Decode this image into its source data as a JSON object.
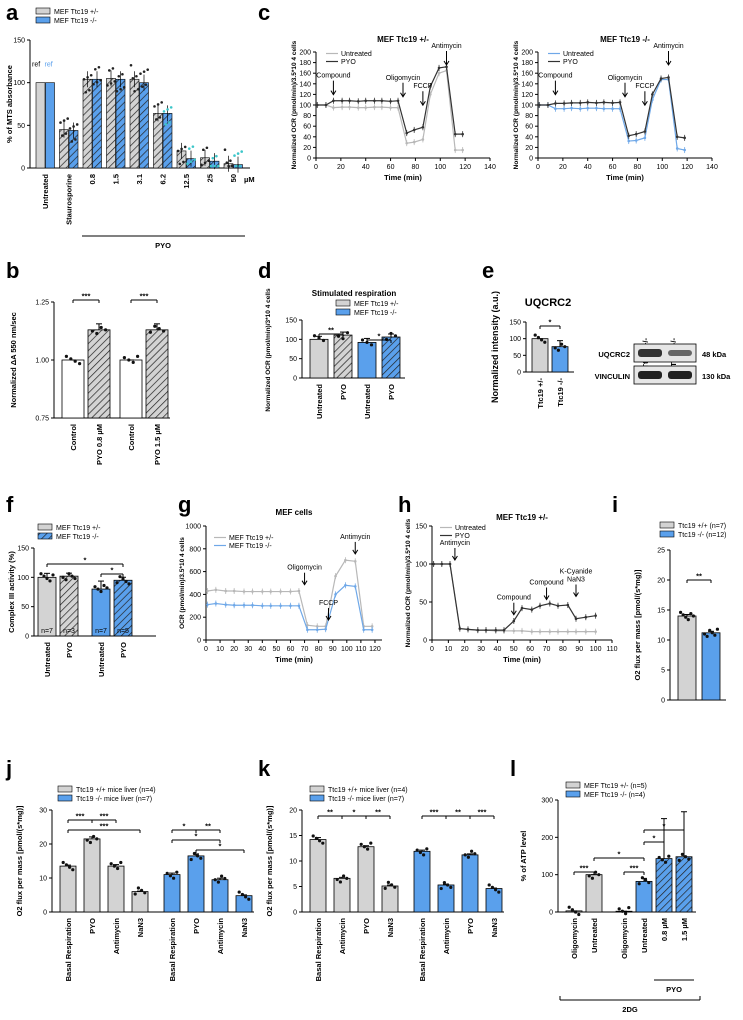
{
  "colors": {
    "grey": "#d3d3d3",
    "blue": "#5aa0ec",
    "dark": "#333333",
    "cyan": "#3cc6c9",
    "lightgrey": "#b8b8b8",
    "lightblue": "#6fa8e8"
  },
  "chart_data": [
    {
      "panel": "a",
      "type": "bar",
      "ylabel": "% of MTS absorbance",
      "ylim": [
        0,
        150
      ],
      "yticks": [
        0,
        50,
        100,
        150
      ],
      "legend": [
        "MEF Ttc19 +/-",
        "MEF Ttc19 -/-"
      ],
      "categories": [
        "Untreated",
        "Staurosporine",
        "0.8",
        "1.5",
        "3.1",
        "6.2",
        "12.5",
        "25",
        "50"
      ],
      "bracket_label": "PYO",
      "unit_label": "µM",
      "ref_labels": [
        "ref",
        "ref"
      ],
      "series": [
        {
          "name": "MEF Ttc19 +/-",
          "values": [
            100,
            45,
            104,
            105,
            104,
            64,
            20,
            12,
            5
          ]
        },
        {
          "name": "MEF Ttc19 -/-",
          "values": [
            100,
            44,
            104,
            104,
            100,
            64,
            11,
            8,
            4
          ]
        }
      ]
    },
    {
      "panel": "b",
      "type": "bar",
      "ylabel": "Normalized ΔA 550 nm/sec",
      "ylim": [
        0.75,
        1.25
      ],
      "yticks": [
        "0.75",
        "1.00",
        "1.25"
      ],
      "categories": [
        "Control",
        "PYO 0.8 µM",
        "Control",
        "PYO 1.5 µM"
      ],
      "values": [
        1.0,
        1.13,
        1.0,
        1.13
      ],
      "significance": [
        "***",
        "***"
      ]
    },
    {
      "panel": "c1",
      "type": "line",
      "title": "MEF Ttc19 +/-",
      "xlabel": "Time (min)",
      "ylabel": "Normalized OCR (pmol/min)/3.5*10 4 cells",
      "xlim": [
        0,
        140
      ],
      "ylim": [
        0,
        200
      ],
      "xticks": [
        0,
        20,
        40,
        60,
        80,
        100,
        120,
        140
      ],
      "yticks": [
        0,
        20,
        40,
        60,
        80,
        100,
        120,
        140,
        160,
        180,
        200
      ],
      "annotations": [
        "Compound",
        "Oligomycin",
        "FCCP",
        "Antimycin"
      ],
      "x": [
        1,
        8,
        14,
        21,
        27,
        34,
        40,
        47,
        53,
        60,
        66,
        73,
        79,
        86,
        92,
        99,
        105,
        112,
        118
      ],
      "series": [
        {
          "name": "Untreated",
          "values": [
            100,
            100,
            95,
            96,
            96,
            95,
            95,
            96,
            96,
            95,
            95,
            28,
            30,
            35,
            120,
            160,
            165,
            15,
            15
          ]
        },
        {
          "name": "PYO",
          "values": [
            100,
            100,
            108,
            108,
            108,
            107,
            108,
            108,
            108,
            107,
            108,
            47,
            53,
            58,
            135,
            170,
            172,
            45,
            45
          ]
        }
      ]
    },
    {
      "panel": "c2",
      "type": "line",
      "title": "MEF Ttc19 -/-",
      "xlabel": "Time (min)",
      "ylabel": "Normalized OCR (pmol/min)/3.5*10 4 cells",
      "xlim": [
        0,
        140
      ],
      "ylim": [
        0,
        200
      ],
      "xticks": [
        0,
        20,
        40,
        60,
        80,
        100,
        120,
        140
      ],
      "yticks": [
        0,
        20,
        40,
        60,
        80,
        100,
        120,
        140,
        160,
        180,
        200
      ],
      "annotations": [
        "Compound",
        "Oligomycin",
        "FCCP",
        "Antimycin"
      ],
      "x": [
        1,
        8,
        14,
        21,
        27,
        34,
        40,
        47,
        53,
        60,
        66,
        73,
        79,
        86,
        92,
        99,
        105,
        112,
        118
      ],
      "series": [
        {
          "name": "Untreated",
          "values": [
            100,
            100,
            93,
            93,
            94,
            93,
            94,
            94,
            93,
            93,
            93,
            32,
            33,
            38,
            110,
            148,
            148,
            18,
            15
          ]
        },
        {
          "name": "PYO",
          "values": [
            100,
            100,
            103,
            103,
            104,
            104,
            105,
            104,
            105,
            104,
            105,
            42,
            45,
            50,
            120,
            150,
            152,
            40,
            38
          ]
        }
      ]
    },
    {
      "panel": "d",
      "type": "bar",
      "title": "Stimulated respiration",
      "ylabel": "Normalized OCR (pmol/min)/3*10 4 cells",
      "ylim": [
        0,
        150
      ],
      "yticks": [
        0,
        50,
        100,
        150
      ],
      "legend": [
        "MEF Ttc19 +/-",
        "MEF Ttc19 -/-"
      ],
      "categories": [
        "Untreated",
        "PYO",
        "Untreated",
        "PYO"
      ],
      "values": [
        100,
        111,
        92,
        106
      ],
      "significance": [
        "**",
        "*"
      ]
    },
    {
      "panel": "e",
      "type": "bar",
      "title": "UQCRC2",
      "ylabel": "Normalized intensity (a.u.)",
      "ylim": [
        0,
        150
      ],
      "yticks": [
        0,
        50,
        100,
        150
      ],
      "categories": [
        "Ttc19 +/-",
        "Ttc19 -/-"
      ],
      "values": [
        100,
        76
      ],
      "significance": [
        "*"
      ],
      "blot": {
        "lanes": [
          "Ttc19 +/-",
          "Ttc19 -/-"
        ],
        "rows": [
          "UQCRC2",
          "VINCULIN"
        ],
        "sizes": [
          "48 kDa",
          "130 kDa"
        ]
      }
    },
    {
      "panel": "f",
      "type": "bar",
      "ylabel": "Complex III activity (%)",
      "ylim": [
        0,
        150
      ],
      "yticks": [
        0,
        50,
        100,
        150
      ],
      "legend": [
        "MEF Ttc19 +/-",
        "MEF Ttc19 -/-"
      ],
      "categories": [
        "Untreated",
        "PYO",
        "Untreated",
        "PYO"
      ],
      "values": [
        100,
        102,
        80,
        95
      ],
      "n_labels": [
        "n=7",
        "n=3",
        "n=7",
        "n=5"
      ],
      "significance": [
        "*",
        "*"
      ]
    },
    {
      "panel": "g",
      "type": "line",
      "title": "MEF cells",
      "xlabel": "Time (min)",
      "ylabel": "OCR (pmol/min)/3.5*10 4 cells",
      "xlim": [
        0,
        125
      ],
      "ylim": [
        0,
        1000
      ],
      "xticks": [
        0,
        10,
        20,
        30,
        40,
        50,
        60,
        70,
        80,
        90,
        100,
        110,
        120
      ],
      "yticks": [
        0,
        200,
        400,
        600,
        800,
        1000
      ],
      "annotations": [
        "Oligomycin",
        "FCCP",
        "Antimycin"
      ],
      "x": [
        1,
        7,
        14,
        20,
        27,
        33,
        40,
        46,
        53,
        60,
        66,
        72,
        79,
        85,
        92,
        99,
        106,
        112,
        118
      ],
      "series": [
        {
          "name": "MEF Ttc19 +/-",
          "values": [
            430,
            440,
            430,
            430,
            425,
            425,
            425,
            425,
            425,
            425,
            430,
            130,
            120,
            120,
            560,
            700,
            690,
            120,
            120
          ]
        },
        {
          "name": "MEF Ttc19 -/-",
          "values": [
            310,
            320,
            310,
            305,
            305,
            305,
            300,
            300,
            300,
            300,
            300,
            90,
            90,
            95,
            400,
            480,
            470,
            90,
            90
          ]
        }
      ]
    },
    {
      "panel": "h",
      "type": "line",
      "title": "MEF Ttc19 +/-",
      "xlabel": "Time (min)",
      "ylabel": "Normalized OCR (pmol/min)/3.5*10 4 cells",
      "xlim": [
        0,
        110
      ],
      "ylim": [
        0,
        150
      ],
      "xticks": [
        0,
        10,
        20,
        30,
        40,
        50,
        60,
        70,
        80,
        90,
        100,
        110
      ],
      "yticks": [
        0,
        50,
        100,
        150
      ],
      "annotations": [
        "Antimycin",
        "Compound",
        "Compound",
        "K-Cyanide NaN3"
      ],
      "x": [
        1,
        6,
        11,
        17,
        22,
        28,
        33,
        39,
        44,
        50,
        55,
        61,
        66,
        72,
        77,
        83,
        88,
        94,
        100
      ],
      "series": [
        {
          "name": "Untreated",
          "values": [
            100,
            100,
            100,
            15,
            14,
            13,
            13,
            12,
            12,
            12,
            12,
            11,
            11,
            11,
            11,
            11,
            11,
            11,
            11
          ]
        },
        {
          "name": "PYO",
          "values": [
            100,
            100,
            100,
            15,
            14,
            13,
            13,
            13,
            13,
            25,
            42,
            40,
            45,
            48,
            45,
            46,
            28,
            30,
            32
          ]
        }
      ]
    },
    {
      "panel": "i",
      "type": "bar",
      "ylabel": "O2 flux per mass [pmol/(s*mg)]",
      "ylim": [
        0,
        25
      ],
      "yticks": [
        0,
        5,
        10,
        15,
        20,
        25
      ],
      "legend": [
        "Ttc19 +/+ (n=7)",
        "Ttc19 -/- (n=12)"
      ],
      "categories": [
        "Ttc19 +/+",
        "Ttc19 -/-"
      ],
      "values": [
        14,
        11.2
      ],
      "significance": [
        "**"
      ]
    },
    {
      "panel": "j",
      "type": "bar",
      "ylabel": "O2 flux per mass [pmol/(s*mg)]",
      "ylim": [
        0,
        30
      ],
      "yticks": [
        0,
        10,
        20,
        30
      ],
      "legend": [
        "Ttc19 +/+ mice liver (n=4)",
        "Ttc19 -/- mice liver (n=7)"
      ],
      "categories": [
        "Basal Respiration",
        "PYO",
        "Antimycin",
        "NaN3",
        "Basal Respiration",
        "PYO",
        "Antimycin",
        "NaN3"
      ],
      "values": [
        13.5,
        21.5,
        13.5,
        6,
        11,
        16.5,
        9.5,
        4.8
      ],
      "significance": [
        "***",
        "***",
        "***",
        "*",
        "*",
        "**",
        "*"
      ]
    },
    {
      "panel": "k",
      "type": "bar",
      "ylabel": "O2 flux per mass [pmol/(s*mg)]",
      "ylim": [
        0,
        20
      ],
      "yticks": [
        0,
        5,
        10,
        15,
        20
      ],
      "legend": [
        "Ttc19 +/+ mice liver (n=4)",
        "Ttc19 -/- mice liver (n=7)"
      ],
      "categories": [
        "Basal Respiration",
        "Antimycin",
        "PYO",
        "NaN3",
        "Basal Respiration",
        "Antimycin",
        "PYO",
        "NaN3"
      ],
      "values": [
        14.2,
        6.6,
        12.8,
        5.1,
        11.9,
        5.3,
        11.2,
        4.6
      ],
      "significance": [
        "**",
        "*",
        "**",
        "***",
        "**",
        "***"
      ]
    },
    {
      "panel": "l",
      "type": "bar",
      "ylabel": "% of ATP level",
      "ylim": [
        0,
        300
      ],
      "yticks": [
        0,
        100,
        200,
        300
      ],
      "legend": [
        "MEF Ttc19 +/- (n=5)",
        "MEF Ttc19 -/- (n=4)"
      ],
      "categories": [
        "Oligomycin",
        "Untreated",
        "Oligomycin",
        "Untreated",
        "0.8 µM",
        "1.5 µM"
      ],
      "values": [
        3,
        100,
        2,
        82,
        143,
        148
      ],
      "bracket_label": "PYO",
      "group_label": "2DG",
      "significance": [
        "***",
        "*",
        "***",
        "*",
        "*"
      ]
    }
  ]
}
